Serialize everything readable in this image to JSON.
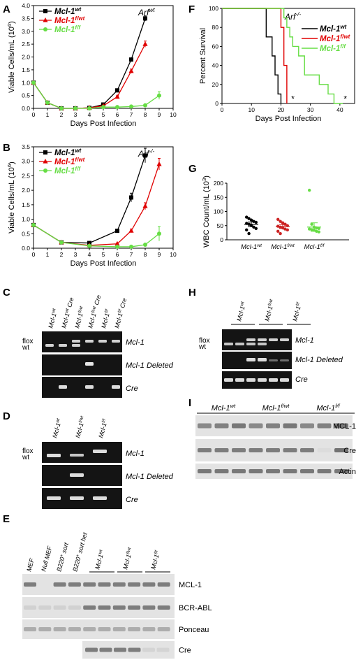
{
  "panels": {
    "A": "A",
    "B": "B",
    "C": "C",
    "D": "D",
    "E": "E",
    "F": "F",
    "G": "G",
    "H": "H",
    "I": "I"
  },
  "chart_data": [
    {
      "id": "A",
      "type": "line",
      "title": "Arf",
      "title_sup": "wt",
      "xlabel": "Days Post Infection",
      "ylabel": "Viable Cells/mL (10",
      "ylabel_sup": "6",
      "ylabel_end": ")",
      "xlim": [
        0,
        10
      ],
      "ylim": [
        0,
        4.0
      ],
      "xticks": [
        0,
        1,
        2,
        3,
        4,
        5,
        6,
        7,
        8,
        9,
        10
      ],
      "yticks": [
        "0.0",
        "0.5",
        "1.0",
        "1.5",
        "2.0",
        "2.5",
        "3.0",
        "3.5",
        "4.0"
      ],
      "series": [
        {
          "name": "Mcl-1",
          "sup": "wt",
          "color": "#000000",
          "marker": "square",
          "x": [
            0,
            1,
            2,
            3,
            4,
            5,
            6,
            7,
            8
          ],
          "y": [
            1.0,
            0.22,
            0.0,
            0.0,
            0.02,
            0.15,
            0.7,
            1.9,
            3.5
          ],
          "err": [
            0.03,
            0.02,
            0.01,
            0.01,
            0.01,
            0.02,
            0.05,
            0.06,
            0.1
          ]
        },
        {
          "name": "Mcl-1",
          "sup": "f/wt",
          "color": "#e00000",
          "marker": "triangle",
          "x": [
            0,
            1,
            2,
            3,
            4,
            5,
            6,
            7,
            8
          ],
          "y": [
            1.0,
            0.22,
            0.0,
            0.0,
            0.02,
            0.1,
            0.45,
            1.45,
            2.5
          ],
          "err": [
            0.03,
            0.02,
            0.01,
            0.01,
            0.01,
            0.02,
            0.04,
            0.08,
            0.12
          ]
        },
        {
          "name": "Mcl-1",
          "sup": "f/f",
          "color": "#66dd44",
          "marker": "circle",
          "x": [
            0,
            1,
            2,
            3,
            4,
            5,
            6,
            7,
            8,
            9
          ],
          "y": [
            1.0,
            0.22,
            0.0,
            0.0,
            0.0,
            0.05,
            0.05,
            0.07,
            0.12,
            0.5
          ],
          "err": [
            0.03,
            0.02,
            0.01,
            0.01,
            0.01,
            0.02,
            0.03,
            0.03,
            0.05,
            0.15
          ]
        }
      ]
    },
    {
      "id": "B",
      "type": "line",
      "title": "Arf",
      "title_sup": "-/-",
      "xlabel": "Days Post Infection",
      "ylabel": "Viable Cells/mL (10",
      "ylabel_sup": "6",
      "ylabel_end": ")",
      "xlim": [
        0,
        10
      ],
      "ylim": [
        0,
        3.5
      ],
      "xticks": [
        0,
        1,
        2,
        3,
        4,
        5,
        6,
        7,
        8,
        9,
        10
      ],
      "yticks": [
        "0.0",
        "0.5",
        "1.0",
        "1.5",
        "2.0",
        "2.5",
        "3.0",
        "3.5"
      ],
      "series": [
        {
          "name": "Mcl-1",
          "sup": "wt",
          "color": "#000000",
          "marker": "square",
          "x": [
            0,
            2,
            4,
            6,
            7,
            8
          ],
          "y": [
            0.8,
            0.2,
            0.18,
            0.6,
            1.75,
            3.2
          ],
          "err": [
            0.03,
            0.02,
            0.02,
            0.04,
            0.15,
            0.25
          ]
        },
        {
          "name": "Mcl-1",
          "sup": "f/wt",
          "color": "#e00000",
          "marker": "triangle",
          "x": [
            0,
            2,
            4,
            6,
            7,
            8,
            9
          ],
          "y": [
            0.8,
            0.2,
            0.1,
            0.15,
            0.6,
            1.45,
            2.9
          ],
          "err": [
            0.03,
            0.02,
            0.02,
            0.03,
            0.06,
            0.12,
            0.2
          ]
        },
        {
          "name": "Mcl-1",
          "sup": "f/f",
          "color": "#66dd44",
          "marker": "circle",
          "x": [
            0,
            2,
            4,
            6,
            7,
            8,
            9
          ],
          "y": [
            0.8,
            0.2,
            0.08,
            0.05,
            0.05,
            0.12,
            0.5
          ],
          "err": [
            0.03,
            0.02,
            0.02,
            0.02,
            0.03,
            0.05,
            0.25
          ]
        }
      ]
    },
    {
      "id": "F",
      "type": "line",
      "title": "Arf",
      "title_sup": "-/-",
      "xlabel": "Days Post Infection",
      "ylabel": "Percent Survival",
      "xlim": [
        0,
        45
      ],
      "ylim": [
        0,
        100
      ],
      "xticks": [
        0,
        10,
        20,
        30,
        40
      ],
      "yticks": [
        "0",
        "20",
        "40",
        "60",
        "80",
        "100"
      ],
      "annotations": [
        "*",
        "*"
      ],
      "series": [
        {
          "name": "Mcl-1",
          "sup": "wt",
          "color": "#000000",
          "x": [
            0,
            15,
            15,
            17,
            17,
            18,
            18,
            19,
            19,
            20,
            20
          ],
          "y": [
            100,
            100,
            70,
            70,
            50,
            50,
            30,
            30,
            10,
            10,
            0
          ]
        },
        {
          "name": "Mcl-1",
          "sup": "f/wt",
          "color": "#e00000",
          "x": [
            0,
            20,
            20,
            21,
            21,
            22,
            22
          ],
          "y": [
            100,
            100,
            80,
            80,
            40,
            40,
            0
          ]
        },
        {
          "name": "Mcl-1",
          "sup": "f/f",
          "color": "#66dd44",
          "x": [
            0,
            21,
            21,
            22,
            22,
            23,
            23,
            24,
            24,
            26,
            26,
            28,
            28,
            33,
            33,
            36,
            36,
            38,
            38,
            40,
            40,
            41
          ],
          "y": [
            100,
            100,
            90,
            90,
            80,
            80,
            70,
            70,
            60,
            60,
            50,
            50,
            30,
            30,
            20,
            20,
            10,
            10,
            0,
            0,
            0,
            0
          ]
        }
      ]
    },
    {
      "id": "G",
      "type": "scatter",
      "ylabel": "WBC Count/mL (10",
      "ylabel_sup": "3",
      "ylabel_end": ")",
      "ylim": [
        0,
        200
      ],
      "yticks": [
        "0",
        "50",
        "100",
        "150",
        "200"
      ],
      "categories": [
        "Mcl-1",
        "Mcl-1",
        "Mcl-1"
      ],
      "category_sups": [
        "wt",
        "f/wt",
        "f/f"
      ],
      "series": [
        {
          "name": "Mcl-1",
          "sup": "wt",
          "color": "#000000",
          "mean": 55,
          "sem": 8,
          "values": [
            80,
            75,
            70,
            65,
            62,
            58,
            55,
            50,
            45,
            40,
            35,
            22
          ]
        },
        {
          "name": "Mcl-1",
          "sup": "f/wt",
          "color": "#cc2222",
          "mean": 47,
          "sem": 7,
          "values": [
            72,
            65,
            60,
            55,
            50,
            48,
            45,
            42,
            38,
            35,
            30,
            22
          ]
        },
        {
          "name": "Mcl-1",
          "sup": "f/f",
          "color": "#66dd44",
          "mean": 45,
          "sem": 15,
          "values": [
            175,
            55,
            45,
            42,
            40,
            38,
            36,
            34,
            30,
            28
          ]
        }
      ]
    }
  ],
  "gels": {
    "C": {
      "lanes": [
        "Mcl-1",
        "Mcl-1",
        "Mcl-1",
        "Mcl-1",
        "Mcl-1",
        "Mcl-1"
      ],
      "lane_sups": [
        "wt",
        "wt",
        "f/wt",
        "f/wt",
        "f/f",
        "f/f"
      ],
      "lane_suffix": [
        "",
        " Cre",
        "",
        " Cre",
        "",
        " Cre"
      ],
      "rows": [
        "Mcl-1",
        "Mcl-1 Deleted",
        "Cre"
      ],
      "side": [
        "flox",
        "wt"
      ]
    },
    "D": {
      "lanes": [
        "Mcl-1",
        "Mcl-1",
        "Mcl-1"
      ],
      "lane_sups": [
        "wt",
        "f/wt",
        "f/f"
      ],
      "rows": [
        "Mcl-1",
        "Mcl-1 Deleted",
        "Cre"
      ],
      "side": [
        "flox",
        "wt"
      ]
    },
    "H": {
      "groups": [
        "Mcl-1",
        "Mcl-1",
        "Mcl-1"
      ],
      "group_sups": [
        "wt",
        "f/wt",
        "f/f"
      ],
      "rows": [
        "Mcl-1",
        "Mcl-1 Deleted",
        "Cre"
      ],
      "side": [
        "flox",
        "wt"
      ]
    },
    "I": {
      "groups": [
        "Mcl-1",
        "Mcl-1",
        "Mcl-1"
      ],
      "group_sups": [
        "wt",
        "f/wt",
        "f/f"
      ],
      "rows": [
        "MCL-1",
        "Cre",
        "Actin"
      ]
    },
    "E": {
      "lanes": [
        "MEF",
        "Null MEF",
        "B220",
        " sort",
        "B220",
        " sort het"
      ],
      "lane_sup": "+",
      "groups": [
        "Mcl-1",
        "Mcl-1",
        "Mcl-1"
      ],
      "group_sups": [
        "wt",
        "f/wt",
        "f/f"
      ],
      "rows": [
        "MCL-1",
        "BCR-ABL",
        "Ponceau",
        "Cre"
      ]
    }
  }
}
